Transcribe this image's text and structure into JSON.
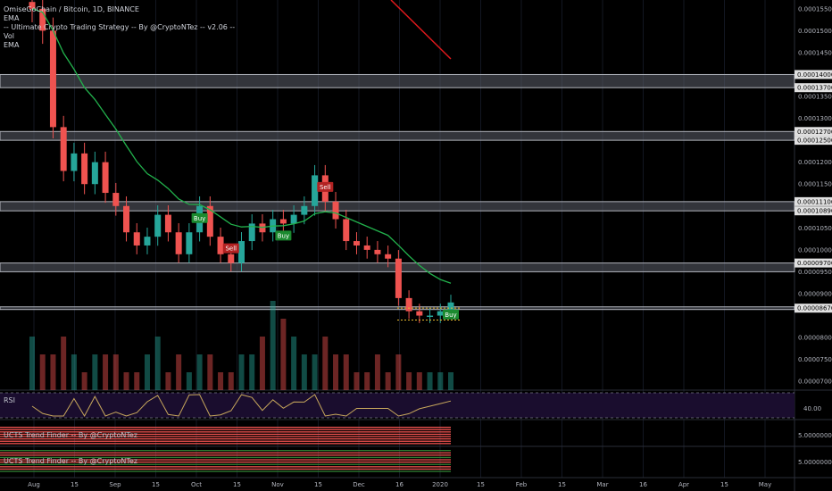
{
  "header": {
    "symbol_line": "OmiseGoChain / Bitcoin, 1D, BINANCE",
    "study_1": "EMA",
    "study_2": "-- Ultimate Crypto Trading Strategy -- By @CryptoNTez -- v2.06 --",
    "study_3": "Vol",
    "study_4": "EMA"
  },
  "colors": {
    "up": "#26a69a",
    "down": "#ef5350",
    "ema_green": "#22b14c",
    "ema_red": "#e0191c",
    "rsi_fill": "#1a0d2e",
    "rsi_line": "#c8a85c",
    "buy": "#1b8a2f",
    "sell": "#b22222"
  },
  "price_axis": {
    "labels": [
      "0.00015500",
      "0.00015000",
      "0.00014500",
      "0.00014000",
      "0.00013700",
      "0.00013500",
      "0.00013000",
      "0.00012700",
      "0.00012500",
      "0.00012000",
      "0.00011500",
      "0.00011100",
      "0.00010890",
      "0.00010500",
      "0.00010000",
      "0.00009700",
      "0.00009500",
      "0.00009000",
      "0.00008670",
      "0.00008000",
      "0.00007500",
      "0.00007000"
    ]
  },
  "highlight_zones": [
    {
      "from": 0.000137,
      "to": 0.00014
    },
    {
      "from": 0.000125,
      "to": 0.000127
    },
    {
      "from": 0.0001089,
      "to": 0.000111
    },
    {
      "from": 9.5e-05,
      "to": 9.7e-05
    },
    {
      "from": 8.67e-05,
      "to": 8.7e-05
    }
  ],
  "time_axis": [
    "Aug",
    "15",
    "Sep",
    "15",
    "Oct",
    "15",
    "Nov",
    "15",
    "Dec",
    "16",
    "2020",
    "15",
    "Feb",
    "15",
    "Mar",
    "16",
    "Apr",
    "15",
    "May"
  ],
  "signals": [
    {
      "label": "Buy",
      "type": "buy"
    },
    {
      "label": "Sell",
      "type": "sell"
    },
    {
      "label": "Buy",
      "type": "buy"
    },
    {
      "label": "Sell",
      "type": "sell"
    },
    {
      "label": "Buy",
      "type": "buy"
    }
  ],
  "rsi": {
    "title": "RSI",
    "level_label": "40.00"
  },
  "trend1": {
    "title": "UCTS Trend Finder -- By @CryptoNTez",
    "value_label": "5.00000000"
  },
  "trend2": {
    "title": "UCTS Trend Finder -- By @CryptoNTez",
    "value_label": "5.00000000"
  },
  "chart_data": {
    "type": "candlestick",
    "symbol": "OmiseGoChain / Bitcoin",
    "timeframe": "1D",
    "exchange": "BINANCE",
    "ylim": [
      6.8e-05,
      0.000157
    ],
    "x": [
      "Jul 28",
      "Aug 1",
      "Aug 5",
      "Aug 9",
      "Aug 13",
      "Aug 17",
      "Aug 21",
      "Aug 25",
      "Aug 29",
      "Sep 2",
      "Sep 6",
      "Sep 10",
      "Sep 14",
      "Sep 18",
      "Sep 22",
      "Sep 26",
      "Sep 30",
      "Oct 4",
      "Oct 8",
      "Oct 12",
      "Oct 16",
      "Oct 20",
      "Oct 24",
      "Oct 28",
      "Nov 1",
      "Nov 5",
      "Nov 9",
      "Nov 13",
      "Nov 17",
      "Nov 21",
      "Nov 25",
      "Nov 29",
      "Dec 3",
      "Dec 7",
      "Dec 11",
      "Dec 15",
      "Dec 19",
      "Dec 23",
      "Dec 27",
      "Dec 31",
      "Jan 4"
    ],
    "close": [
      0.000155,
      0.00015,
      0.000128,
      0.000118,
      0.000122,
      0.000115,
      0.00012,
      0.000113,
      0.00011,
      0.000104,
      0.000101,
      0.000103,
      0.000108,
      0.000104,
      9.9e-05,
      0.000104,
      0.00011,
      0.000103,
      9.9e-05,
      9.7e-05,
      0.000102,
      0.000106,
      0.000104,
      0.000107,
      0.000106,
      0.000108,
      0.00011,
      0.000117,
      0.000111,
      0.000107,
      0.000102,
      0.000101,
      0.0001,
      9.9e-05,
      9.8e-05,
      8.9e-05,
      8.6e-05,
      8.5e-05,
      8.5e-05,
      8.6e-05,
      8.8e-05
    ],
    "volume": [
      3,
      2,
      2,
      3,
      2,
      1,
      2,
      2,
      2,
      1,
      1,
      2,
      3,
      1,
      2,
      1,
      2,
      2,
      1,
      1,
      2,
      2,
      3,
      5,
      4,
      3,
      2,
      2,
      3,
      2,
      2,
      1,
      1,
      2,
      1,
      2,
      1,
      1,
      1,
      1,
      1
    ]
  }
}
